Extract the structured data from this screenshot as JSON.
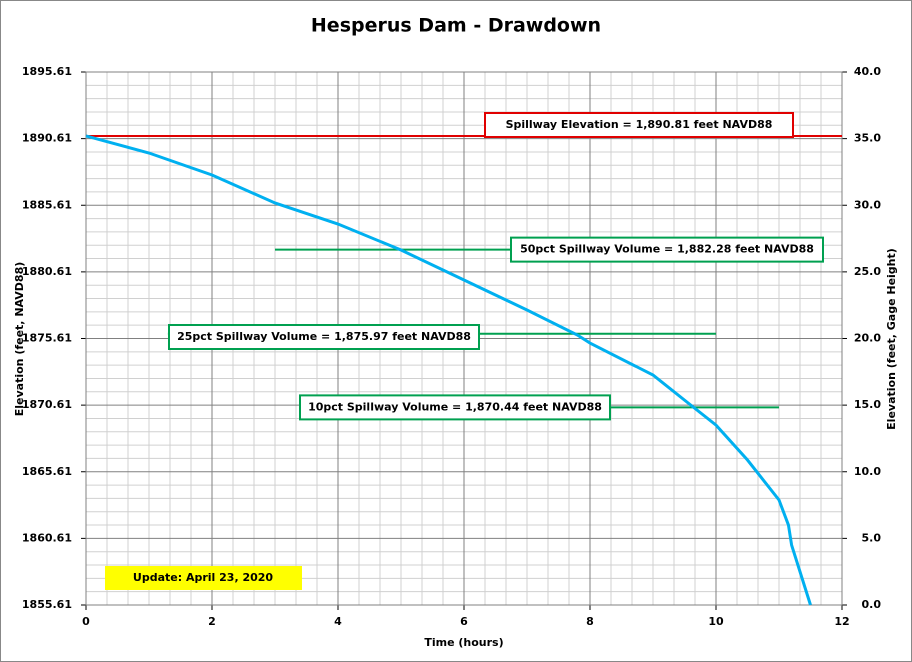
{
  "chart_data": {
    "type": "line",
    "title": "Hesperus Dam - Drawdown",
    "xlabel": "Time (hours)",
    "ylabel": "Elevation  (feet, NAVD88)",
    "y2label": "Elevation  (feet, Gage  Height)",
    "x": [
      0,
      1,
      2,
      3,
      4,
      5,
      6,
      7,
      7.8,
      8,
      9,
      9.6,
      10,
      10.5,
      11,
      11.15,
      11.2,
      11.5
    ],
    "series": [
      {
        "name": "Drawdown",
        "color": "#00b0f0",
        "values": [
          1890.81,
          1889.53,
          1887.88,
          1885.78,
          1884.2,
          1882.25,
          1880.0,
          1877.75,
          1875.87,
          1875.27,
          1872.87,
          1870.61,
          1869.11,
          1866.49,
          1863.49,
          1861.61,
          1860.11,
          1855.61
        ]
      }
    ],
    "xlim": [
      0,
      12
    ],
    "xticks": [
      0,
      2,
      4,
      6,
      8,
      10,
      12
    ],
    "ylim": [
      1855.61,
      1895.61
    ],
    "yticks": [
      1855.61,
      1860.61,
      1865.61,
      1870.61,
      1875.61,
      1880.61,
      1885.61,
      1890.61,
      1895.61
    ],
    "y2lim": [
      0,
      40
    ],
    "y2ticks": [
      {
        "value": 0,
        "label": "0.0"
      },
      {
        "value": 5,
        "label": "5.0"
      },
      {
        "value": 10,
        "label": "10.0"
      },
      {
        "value": 15,
        "label": "15.0"
      },
      {
        "value": 20,
        "label": "20.0"
      },
      {
        "value": 25,
        "label": "25.0"
      },
      {
        "value": 30,
        "label": "30.0"
      },
      {
        "value": 35,
        "label": "35.0"
      },
      {
        "value": 40,
        "label": "40.0"
      }
    ],
    "grid": true,
    "reference_lines": [
      {
        "label": "Spillway Elevation = 1,890.81  feet NAVD88",
        "value": 1890.81,
        "x_range": [
          0,
          12
        ],
        "color": "#e00000"
      },
      {
        "label": "50pct Spillway Volume = 1,882.28  feet NAVD88",
        "value": 1882.28,
        "x_range": [
          3,
          10
        ],
        "color": "#00a050"
      },
      {
        "label": "25pct Spillway Volume = 1,875.97  feet NAVD88",
        "value": 1875.97,
        "x_range": [
          1.3,
          10
        ],
        "color": "#00a050"
      },
      {
        "label": "10pct Spillway Volume = 1,870.44  feet NAVD88",
        "value": 1870.44,
        "x_range": [
          3.4,
          11
        ],
        "color": "#00a050"
      }
    ],
    "note": "Update: April 23, 2020"
  }
}
